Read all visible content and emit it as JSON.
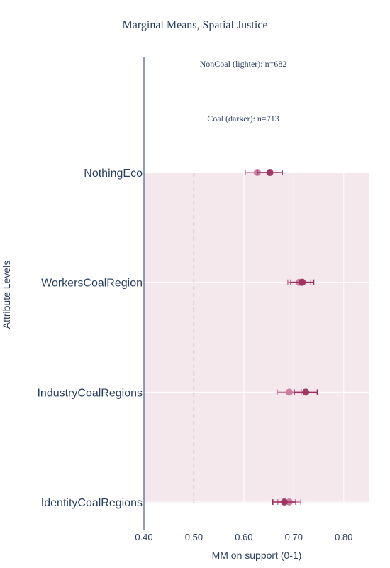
{
  "chart_data": {
    "type": "scatter",
    "title": "Marginal Means, Spatial Justice",
    "xlabel": "MM on support (0-1)",
    "ylabel": "Attribute Levels",
    "xlim": [
      0.4,
      0.85
    ],
    "xticks": [
      0.4,
      0.5,
      0.6,
      0.7,
      0.8
    ],
    "xtick_labels": [
      "0.40",
      "0.50",
      "0.60",
      "0.70",
      "0.80"
    ],
    "categories": [
      "NothingEco",
      "WorkersCoalRegion",
      "IndustryCoalRegions",
      "IdentityCoalRegions"
    ],
    "reference_line": 0.5,
    "annotations": [
      "NonCoal (lighter): n=682",
      "Coal (darker): n=713"
    ],
    "series": [
      {
        "color": "#c87a9f",
        "estimates": [
          0.627,
          0.711,
          0.691,
          0.691
        ],
        "ci_low": [
          0.603,
          0.688,
          0.667,
          0.668
        ],
        "ci_high": [
          0.651,
          0.734,
          0.715,
          0.714
        ]
      },
      {
        "color": "#9e2f5e",
        "estimates": [
          0.652,
          0.717,
          0.724,
          0.681
        ],
        "ci_low": [
          0.627,
          0.694,
          0.701,
          0.658
        ],
        "ci_high": [
          0.677,
          0.74,
          0.747,
          0.704
        ]
      }
    ],
    "grid": true,
    "background": "#f5e8ec"
  }
}
